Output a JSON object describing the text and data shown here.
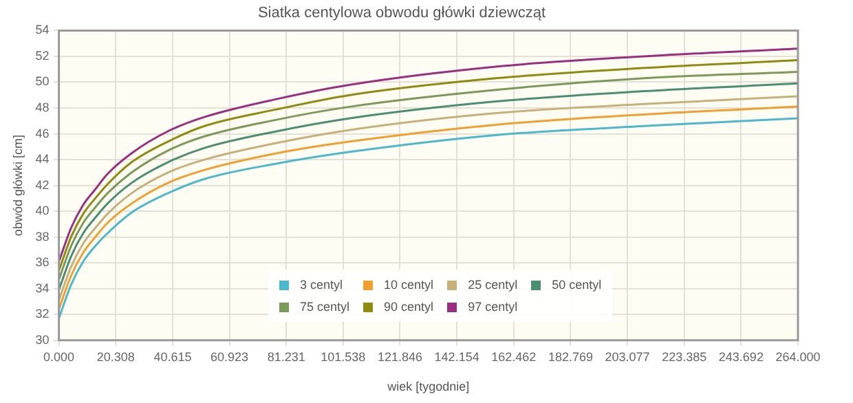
{
  "chart_data": {
    "type": "line",
    "title": "Siatka centylowa obwodu główki dziewcząt",
    "xlabel": "wiek [tygodnie]",
    "ylabel": "obwód główki [cm]",
    "x": [
      0,
      4.35,
      8.7,
      13,
      17.4,
      26,
      39,
      52,
      78,
      104,
      156,
      209,
      264
    ],
    "series": [
      {
        "name": "3 centyl",
        "color": "#4bb8cc",
        "values": [
          31.7,
          34.3,
          36.1,
          37.3,
          38.3,
          39.9,
          41.4,
          42.5,
          43.7,
          44.6,
          45.9,
          46.6,
          47.2
        ]
      },
      {
        "name": "10 centyl",
        "color": "#f0a030",
        "values": [
          32.4,
          35.0,
          36.8,
          38.0,
          39.1,
          40.6,
          42.2,
          43.2,
          44.5,
          45.4,
          46.7,
          47.5,
          48.1
        ]
      },
      {
        "name": "25 centyl",
        "color": "#c8b07a",
        "values": [
          33.1,
          35.7,
          37.5,
          38.7,
          39.8,
          41.4,
          43.0,
          44.0,
          45.3,
          46.3,
          47.6,
          48.3,
          48.9
        ]
      },
      {
        "name": "50 centyl",
        "color": "#4a8f72",
        "values": [
          33.9,
          36.5,
          38.3,
          39.5,
          40.6,
          42.2,
          43.8,
          44.9,
          46.2,
          47.2,
          48.5,
          49.3,
          49.9
        ]
      },
      {
        "name": "75 centyl",
        "color": "#7a9a5a",
        "values": [
          34.7,
          37.3,
          39.1,
          40.3,
          41.4,
          43.0,
          44.7,
          45.8,
          47.1,
          48.1,
          49.4,
          50.3,
          50.8
        ]
      },
      {
        "name": "90 centyl",
        "color": "#8f8a10",
        "values": [
          35.4,
          38.0,
          39.8,
          41.0,
          42.1,
          43.8,
          45.4,
          46.6,
          47.9,
          49.0,
          50.3,
          51.1,
          51.7
        ]
      },
      {
        "name": "97 centyl",
        "color": "#9a2f80",
        "values": [
          36.1,
          38.7,
          40.5,
          41.7,
          42.9,
          44.5,
          46.2,
          47.3,
          48.7,
          49.8,
          51.2,
          52.0,
          52.6
        ]
      }
    ],
    "xlim": [
      0,
      264
    ],
    "xticks": [
      {
        "value": 0,
        "label": "0.000"
      },
      {
        "value": 20.308,
        "label": "20.308"
      },
      {
        "value": 40.615,
        "label": "40.615"
      },
      {
        "value": 60.923,
        "label": "60.923"
      },
      {
        "value": 81.231,
        "label": "81.231"
      },
      {
        "value": 101.538,
        "label": "101.538"
      },
      {
        "value": 121.846,
        "label": "121.846"
      },
      {
        "value": 142.154,
        "label": "142.154"
      },
      {
        "value": 162.462,
        "label": "162.462"
      },
      {
        "value": 182.769,
        "label": "182.769"
      },
      {
        "value": 203.077,
        "label": "203.077"
      },
      {
        "value": 223.385,
        "label": "223.385"
      },
      {
        "value": 243.692,
        "label": "243.692"
      },
      {
        "value": 264,
        "label": "264.000"
      }
    ],
    "ylim": [
      30,
      54
    ],
    "yticks": [
      30,
      32,
      34,
      36,
      38,
      40,
      42,
      44,
      46,
      48,
      50,
      52,
      54
    ],
    "grid": true,
    "legend": "bottom",
    "marker": "none",
    "line_style": "solid"
  }
}
